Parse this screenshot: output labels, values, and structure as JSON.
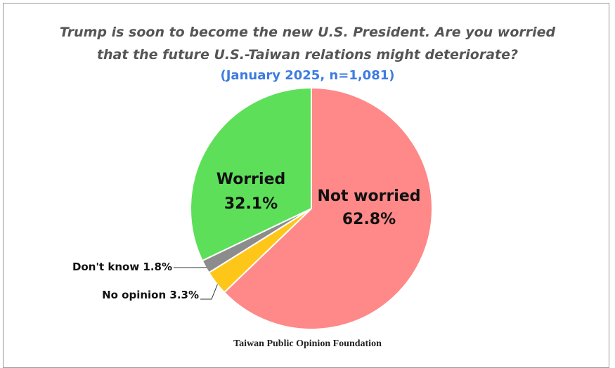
{
  "colors": {
    "not_worried": "#ff8888",
    "worried": "#5ddf5a",
    "no_opinion": "#ffc61a",
    "dont_know": "#8c8c8c",
    "subtitle": "#3d7be0",
    "title": "#555555"
  },
  "chart_data": {
    "type": "pie",
    "title": "Trump is soon to become the new U.S. President. Are you worried that the future U.S.-Taiwan relations might deteriorate?",
    "title_line1": "Trump is soon to become the new U.S. President. Are you worried",
    "title_line2": "that the future U.S.-Taiwan relations might deteriorate?",
    "subtitle": "(January 2025, n=1,081)",
    "source": "Taiwan Public Opinion Foundation",
    "slices": [
      {
        "label": "Not worried",
        "value": 62.8,
        "display": "62.8%",
        "color": "#ff8888"
      },
      {
        "label": "No opinion",
        "value": 3.3,
        "display": "3.3%",
        "color": "#ffc61a"
      },
      {
        "label": "Don't know",
        "value": 1.8,
        "display": "1.8%",
        "color": "#8c8c8c"
      },
      {
        "label": "Worried",
        "value": 32.1,
        "display": "32.1%",
        "color": "#5ddf5a"
      }
    ],
    "labels": {
      "not_worried": [
        "Not worried",
        "62.8%"
      ],
      "worried": [
        "Worried",
        "32.1%"
      ],
      "dont_know": "Don't know 1.8%",
      "no_opinion": "No opinion 3.3%"
    }
  }
}
